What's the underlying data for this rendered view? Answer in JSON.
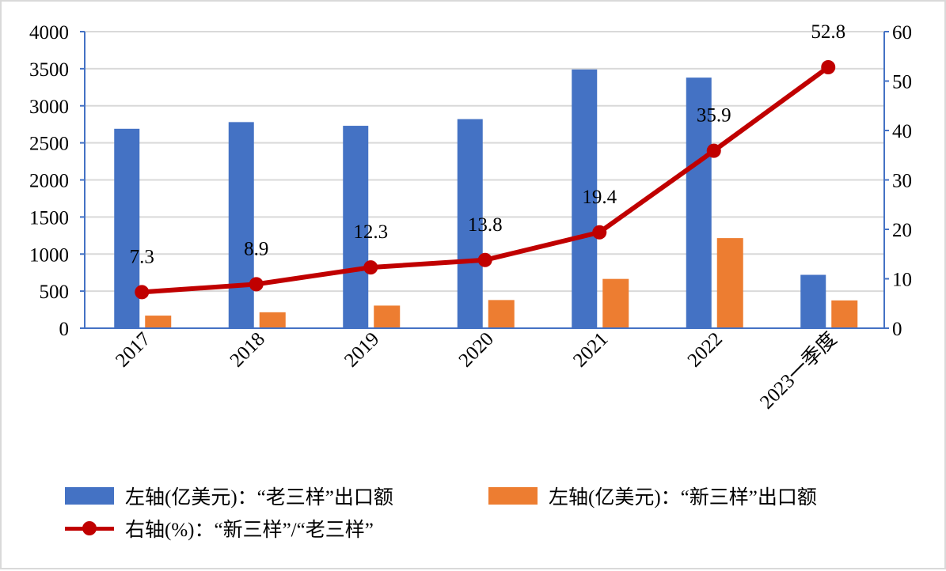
{
  "chart_data": {
    "type": "bar+line",
    "categories": [
      "2017",
      "2018",
      "2019",
      "2020",
      "2021",
      "2022",
      "2023一季度"
    ],
    "series": [
      {
        "name": "左轴(亿美元)：“老三样”出口额",
        "axis": "left",
        "type": "bar",
        "color": "#4472c4",
        "values": [
          2690,
          2780,
          2730,
          2820,
          3490,
          3380,
          720
        ]
      },
      {
        "name": "左轴(亿美元)：“新三样”出口额",
        "axis": "left",
        "type": "bar",
        "color": "#ed7d31",
        "values": [
          170,
          215,
          305,
          380,
          665,
          1215,
          375
        ]
      },
      {
        "name": "右轴(%)：“新三样”/“老三样”",
        "axis": "right",
        "type": "line",
        "color": "#c00000",
        "values": [
          7.3,
          8.9,
          12.3,
          13.8,
          19.4,
          35.9,
          52.8
        ],
        "labels": [
          "7.3",
          "8.9",
          "12.3",
          "13.8",
          "19.4",
          "35.9",
          "52.8"
        ]
      }
    ],
    "left_axis": {
      "range": [
        0,
        4000
      ],
      "ticks": [
        "0",
        "500",
        "1000",
        "1500",
        "2000",
        "2500",
        "3000",
        "3500",
        "4000"
      ]
    },
    "right_axis": {
      "range": [
        0,
        60
      ],
      "ticks": [
        "0",
        "10",
        "20",
        "30",
        "40",
        "50",
        "60"
      ]
    },
    "grid": true,
    "legend": "bottom"
  }
}
